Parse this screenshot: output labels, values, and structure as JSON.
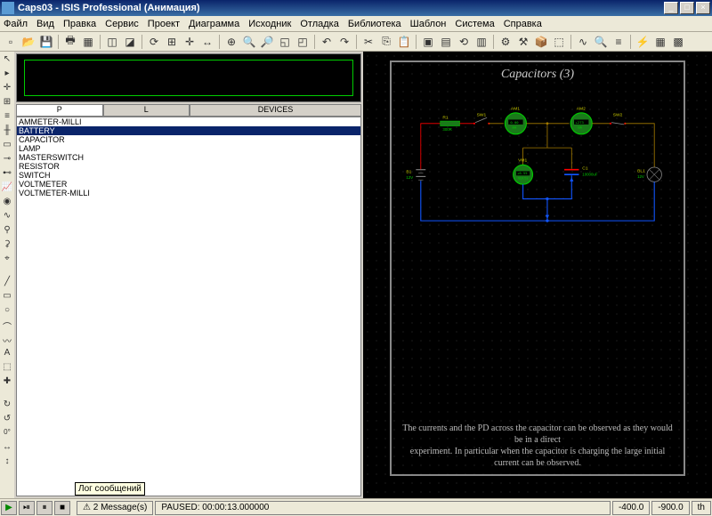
{
  "title": "Caps03 - ISIS Professional (Анимация)",
  "menu": [
    "Файл",
    "Вид",
    "Правка",
    "Сервис",
    "Проект",
    "Диаграмма",
    "Исходник",
    "Отладка",
    "Библиотека",
    "Шаблон",
    "Система",
    "Справка"
  ],
  "winbtns": {
    "min": "_",
    "max": "□",
    "close": "×"
  },
  "pltabs": {
    "p": "P",
    "l": "L",
    "dev": "DEVICES"
  },
  "devices": [
    "AMMETER-MILLI",
    "BATTERY",
    "CAPACITOR",
    "LAMP",
    "MASTERSWITCH",
    "RESISTOR",
    "SWITCH",
    "VOLTMETER",
    "VOLTMETER-MILLI"
  ],
  "selected_device": "BATTERY",
  "schematic": {
    "title": "Capacitors (3)",
    "caption1": "The currents and the PD across the capacitor can be observed as they would be in a direct",
    "caption2": "experiment.  In particular when the capacitor is charging the large initial current can be observed.",
    "components": {
      "B1": {
        "label": "B1",
        "val": "12V"
      },
      "R1": {
        "label": "R1",
        "val": "300R"
      },
      "SW1": {
        "label": "SW1"
      },
      "SW2": {
        "label": "SW2"
      },
      "AM1": {
        "label": "AM1",
        "reading": "0.00",
        "unit": "mA"
      },
      "AM2": {
        "label": "AM2",
        "reading": "+273",
        "unit": "mA"
      },
      "VM1": {
        "label": "VM1",
        "reading": "+6.55",
        "unit": "Volts"
      },
      "C1": {
        "label": "C1",
        "val": "10000uF"
      },
      "BL1": {
        "label": "BL1",
        "val": "12V"
      }
    },
    "colors": {
      "wire_pos": "#f00",
      "wire_neu": "#a67c00",
      "wire_neg": "#1155ff",
      "meter_body": "#1a7a1a",
      "meter_stroke": "#00cc00",
      "label": "#cccc00"
    }
  },
  "status": {
    "tooltip": "Лог сообщений",
    "msgs": "2 Message(s)",
    "state": "PAUSED: 00:00:13.000000",
    "coords_x": "-400.0",
    "coords_y": "-900.0",
    "unit": "th",
    "rot": "0°"
  }
}
